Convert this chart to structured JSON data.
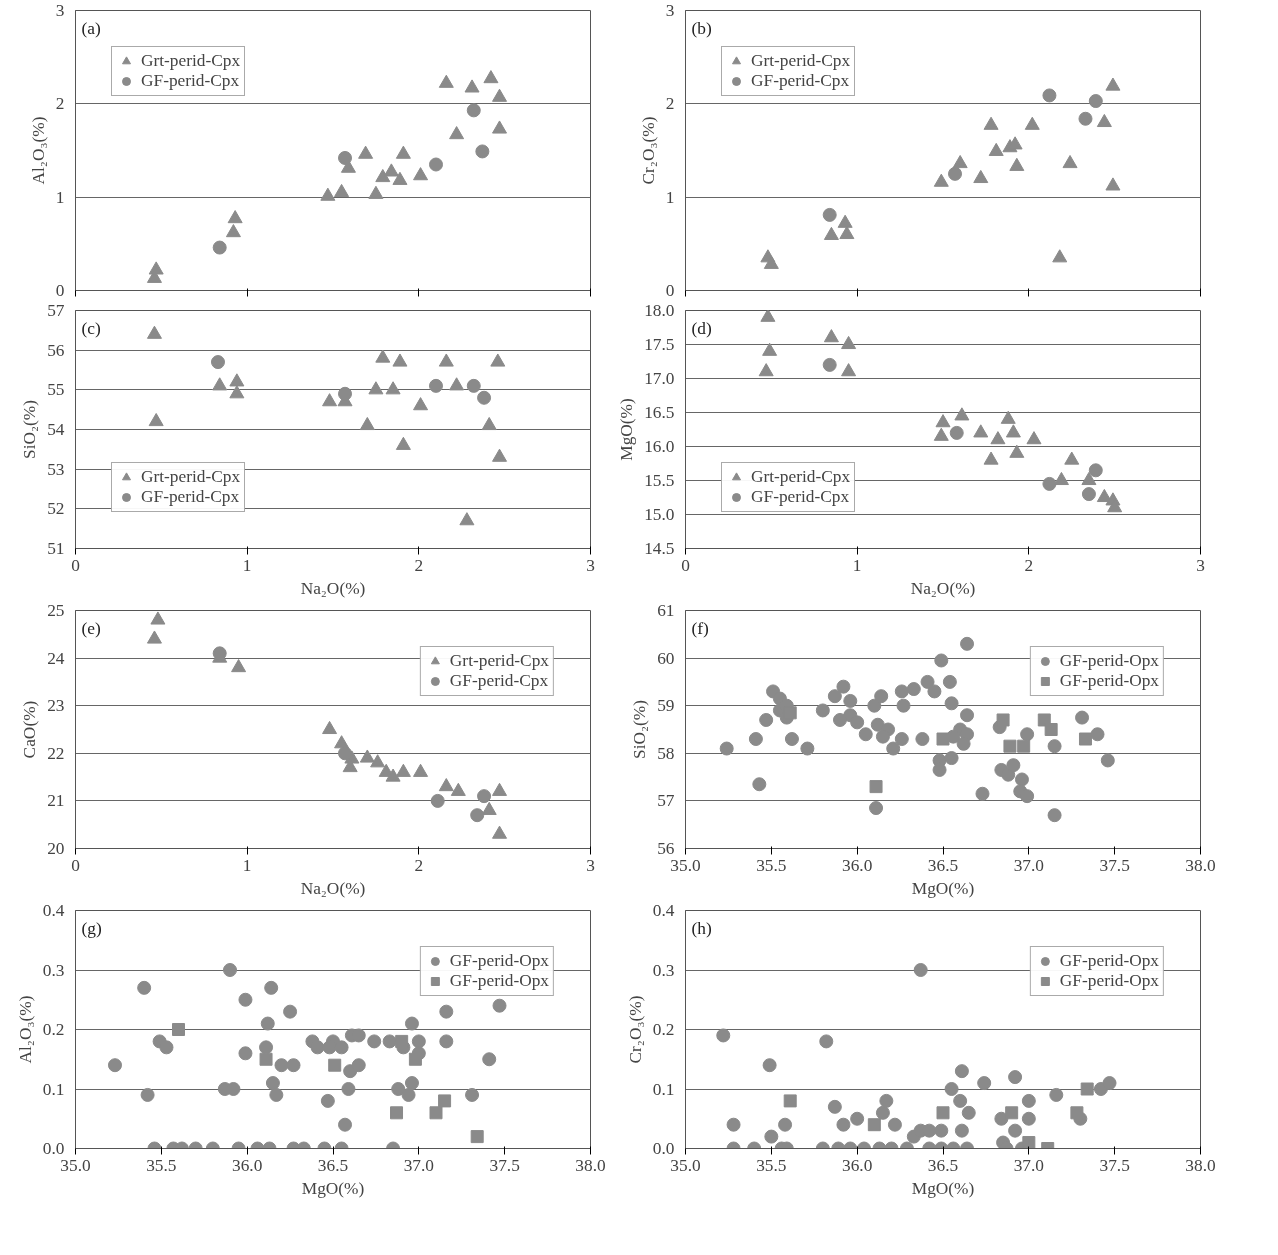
{
  "chart_data": [
    {
      "type": "scatter",
      "annotations": [
        "(a)"
      ],
      "ylabel": "Al₂O₃(%)",
      "xlim": [
        0,
        3
      ],
      "ylim": [
        0,
        3
      ],
      "xticks": [
        0,
        1,
        2,
        3
      ],
      "yticks": [
        0,
        1,
        2,
        3
      ],
      "grid": "y",
      "legend": "top left",
      "tick_labels": "y",
      "series": [
        {
          "name": "Grt-perid-Cpx",
          "color": "#8a8a8a",
          "marker": "triangle",
          "x": [
            0.47,
            0.46,
            0.93,
            0.92,
            1.47,
            1.55,
            1.59,
            1.69,
            1.75,
            1.79,
            1.84,
            1.89,
            1.91,
            2.01,
            2.16,
            2.22,
            2.31,
            2.42,
            2.47,
            2.47
          ],
          "values": [
            0.22,
            0.13,
            0.77,
            0.62,
            1.01,
            1.05,
            1.31,
            1.46,
            1.03,
            1.21,
            1.27,
            1.18,
            1.46,
            1.23,
            2.22,
            1.67,
            2.17,
            2.27,
            2.07,
            1.73
          ]
        },
        {
          "name": "GF-perid-Cpx",
          "color": "#8a8a8a",
          "marker": "circle",
          "x": [
            0.84,
            1.57,
            2.1,
            2.32,
            2.37
          ],
          "values": [
            0.46,
            1.42,
            1.35,
            1.93,
            1.49
          ]
        }
      ]
    },
    {
      "type": "scatter",
      "annotations": [
        "(b)"
      ],
      "ylabel": "Cr₂O₃(%)",
      "xlim": [
        0,
        3
      ],
      "ylim": [
        0,
        3
      ],
      "xticks": [
        0,
        1,
        2,
        3
      ],
      "yticks": [
        0,
        1,
        2,
        3
      ],
      "grid": "y",
      "legend": "top left",
      "tick_labels": "y",
      "series": [
        {
          "name": "Grt-perid-Cpx",
          "color": "#8a8a8a",
          "marker": "triangle",
          "x": [
            0.48,
            0.5,
            0.85,
            0.93,
            0.94,
            1.49,
            1.6,
            1.72,
            1.78,
            1.81,
            1.89,
            1.92,
            1.93,
            2.02,
            2.18,
            2.24,
            2.44,
            2.49,
            2.49
          ],
          "values": [
            0.35,
            0.28,
            0.59,
            0.72,
            0.6,
            1.16,
            1.36,
            1.2,
            1.77,
            1.49,
            1.53,
            1.56,
            1.33,
            1.77,
            0.35,
            1.36,
            1.8,
            2.19,
            1.12
          ]
        },
        {
          "name": "GF-perid-Cpx",
          "color": "#8a8a8a",
          "marker": "circle",
          "x": [
            0.84,
            1.57,
            2.12,
            2.33,
            2.39
          ],
          "values": [
            0.81,
            1.25,
            2.09,
            1.84,
            2.03
          ]
        }
      ]
    },
    {
      "type": "scatter",
      "annotations": [
        "(c)"
      ],
      "ylabel": "SiO₂(%)",
      "xlabel": "Na₂O(%)",
      "xlim": [
        0,
        3
      ],
      "ylim": [
        51,
        57
      ],
      "xticks": [
        0,
        1,
        2,
        3
      ],
      "yticks": [
        51,
        52,
        53,
        54,
        55,
        56,
        57
      ],
      "grid": "y",
      "legend": "bottom left",
      "series": [
        {
          "name": "Grt-perid-Cpx",
          "color": "#8a8a8a",
          "marker": "triangle",
          "x": [
            0.46,
            0.47,
            0.84,
            0.94,
            0.94,
            1.48,
            1.57,
            1.7,
            1.75,
            1.79,
            1.85,
            1.89,
            1.91,
            2.01,
            2.16,
            2.22,
            2.28,
            2.41,
            2.46,
            2.47
          ],
          "values": [
            56.4,
            54.2,
            55.1,
            55.2,
            54.9,
            54.7,
            54.7,
            54.1,
            55.0,
            55.8,
            55.0,
            55.7,
            53.6,
            54.6,
            55.7,
            55.1,
            51.7,
            54.1,
            55.7,
            53.3
          ]
        },
        {
          "name": "GF-perid-Cpx",
          "color": "#8a8a8a",
          "marker": "circle",
          "x": [
            0.83,
            1.57,
            2.1,
            2.32,
            2.38
          ],
          "values": [
            55.7,
            54.9,
            55.1,
            55.1,
            54.8
          ]
        }
      ]
    },
    {
      "type": "scatter",
      "annotations": [
        "(d)"
      ],
      "ylabel": "MgO(%)",
      "xlabel": "Na₂O(%)",
      "xlim": [
        0,
        3
      ],
      "ylim": [
        14.5,
        18
      ],
      "xticks": [
        0,
        1,
        2,
        3
      ],
      "yticks": [
        {
          "value": 14.5,
          "label": "14.5"
        },
        {
          "value": 15,
          "label": "15.0"
        },
        {
          "value": 15.5,
          "label": "15.5"
        },
        {
          "value": 16,
          "label": "16.0"
        },
        {
          "value": 16.5,
          "label": "16.5"
        },
        {
          "value": 17,
          "label": "17.0"
        },
        {
          "value": 17.5,
          "label": "17.5"
        },
        {
          "value": 18,
          "label": "18.0"
        }
      ],
      "grid": "y",
      "legend": "bottom left",
      "series": [
        {
          "name": "Grt-perid-Cpx",
          "color": "#8a8a8a",
          "marker": "triangle",
          "x": [
            0.48,
            0.49,
            0.47,
            0.85,
            0.95,
            0.95,
            1.5,
            1.49,
            1.61,
            1.72,
            1.78,
            1.82,
            1.88,
            1.91,
            1.93,
            2.03,
            2.19,
            2.25,
            2.35,
            2.44,
            2.49,
            2.5
          ],
          "values": [
            17.9,
            17.4,
            17.1,
            17.6,
            17.5,
            17.1,
            16.35,
            16.15,
            16.45,
            16.2,
            15.8,
            16.1,
            16.4,
            16.2,
            15.9,
            16.1,
            15.5,
            15.8,
            15.5,
            15.25,
            15.2,
            15.1
          ]
        },
        {
          "name": "GF-perid-Cpx",
          "color": "#8a8a8a",
          "marker": "circle",
          "x": [
            0.84,
            1.58,
            2.12,
            2.35,
            2.39
          ],
          "values": [
            17.2,
            16.2,
            15.45,
            15.3,
            15.65
          ]
        }
      ]
    },
    {
      "type": "scatter",
      "annotations": [
        "(e)"
      ],
      "ylabel": "CaO(%)",
      "xlabel": "Na₂O(%)",
      "xlim": [
        0,
        3
      ],
      "ylim": [
        20,
        25
      ],
      "xticks": [
        0,
        1,
        2,
        3
      ],
      "yticks": [
        20,
        21,
        22,
        23,
        24,
        25
      ],
      "grid": "y",
      "legend": "top right",
      "series": [
        {
          "name": "Grt-perid-Cpx",
          "color": "#8a8a8a",
          "marker": "triangle",
          "x": [
            0.48,
            0.46,
            0.84,
            0.95,
            1.48,
            1.55,
            1.61,
            1.6,
            1.7,
            1.76,
            1.81,
            1.85,
            1.91,
            2.01,
            2.16,
            2.23,
            2.41,
            2.47,
            2.47
          ],
          "values": [
            24.8,
            24.4,
            24.0,
            23.8,
            22.5,
            22.2,
            21.88,
            21.7,
            21.9,
            21.8,
            21.6,
            21.5,
            21.6,
            21.6,
            21.3,
            21.2,
            20.8,
            21.2,
            20.3
          ]
        },
        {
          "name": "GF-perid-Cpx",
          "color": "#8a8a8a",
          "marker": "circle",
          "x": [
            0.84,
            1.57,
            2.11,
            2.34,
            2.38
          ],
          "values": [
            24.1,
            22.0,
            21.0,
            20.7,
            21.1
          ]
        }
      ]
    },
    {
      "type": "scatter",
      "annotations": [
        "(f)"
      ],
      "ylabel": "SiO₂(%)",
      "xlabel": "MgO(%)",
      "xlim": [
        35,
        38
      ],
      "ylim": [
        56,
        61
      ],
      "xticks": [
        {
          "value": 35,
          "label": "35.0"
        },
        {
          "value": 35.5,
          "label": "35.5"
        },
        {
          "value": 36,
          "label": "36.0"
        },
        {
          "value": 36.5,
          "label": "36.5"
        },
        {
          "value": 37,
          "label": "37.0"
        },
        {
          "value": 37.5,
          "label": "37.5"
        },
        {
          "value": 38,
          "label": "38.0"
        }
      ],
      "yticks": [
        56,
        57,
        58,
        59,
        60,
        61
      ],
      "grid": "y",
      "legend": "top right",
      "series": [
        {
          "name": "GF-perid-Opx",
          "color": "#8a8a8a",
          "marker": "circle",
          "x": [
            35.24,
            35.41,
            35.43,
            35.47,
            35.51,
            35.55,
            35.55,
            35.59,
            35.59,
            35.62,
            35.71,
            35.8,
            35.87,
            35.92,
            35.96,
            35.96,
            35.9,
            36.0,
            36.05,
            36.1,
            36.14,
            36.12,
            36.18,
            36.15,
            36.21,
            36.26,
            36.27,
            36.26,
            36.33,
            36.41,
            36.45,
            36.38,
            36.49,
            36.64,
            36.54,
            36.55,
            36.64,
            36.6,
            36.64,
            36.62,
            36.56,
            36.48,
            36.48,
            36.55,
            36.73,
            36.11,
            36.83,
            36.84,
            36.88,
            36.91,
            36.96,
            36.95,
            36.99,
            36.99,
            37.15,
            37.15,
            37.31,
            37.4,
            37.46
          ],
          "values": [
            58.1,
            58.3,
            57.35,
            58.7,
            59.3,
            59.15,
            58.9,
            59.0,
            58.75,
            58.3,
            58.1,
            58.9,
            59.2,
            59.4,
            59.1,
            58.8,
            58.7,
            58.65,
            58.4,
            59.0,
            59.2,
            58.6,
            58.5,
            58.35,
            58.1,
            58.3,
            59.0,
            59.3,
            59.35,
            59.5,
            59.3,
            58.3,
            59.95,
            60.3,
            59.5,
            59.05,
            58.8,
            58.5,
            58.4,
            58.2,
            58.35,
            57.85,
            57.65,
            57.9,
            57.15,
            56.85,
            58.55,
            57.65,
            57.55,
            57.75,
            57.45,
            57.2,
            57.1,
            58.4,
            58.15,
            56.7,
            58.75,
            58.4,
            57.85
          ]
        },
        {
          "name": "GF-perid-Opx",
          "color": "#8a8a8a",
          "marker": "square",
          "x": [
            35.61,
            36.11,
            36.5,
            36.85,
            36.89,
            36.97,
            37.09,
            37.13,
            37.33
          ],
          "values": [
            58.85,
            57.3,
            58.3,
            58.7,
            58.15,
            58.15,
            58.7,
            58.5,
            58.3
          ]
        }
      ]
    },
    {
      "type": "scatter",
      "annotations": [
        "(g)"
      ],
      "ylabel": "Al₂O₃(%)",
      "xlabel": "MgO(%)",
      "xlim": [
        35,
        38
      ],
      "ylim": [
        0,
        0.4
      ],
      "xticks": [
        {
          "value": 35,
          "label": "35.0"
        },
        {
          "value": 35.5,
          "label": "35.5"
        },
        {
          "value": 36,
          "label": "36.0"
        },
        {
          "value": 36.5,
          "label": "36.5"
        },
        {
          "value": 37,
          "label": "37.0"
        },
        {
          "value": 37.5,
          "label": "37.5"
        },
        {
          "value": 38,
          "label": "38.0"
        }
      ],
      "yticks": [
        {
          "value": 0,
          "label": "0.0"
        },
        {
          "value": 0.1,
          "label": "0.1"
        },
        {
          "value": 0.2,
          "label": "0.2"
        },
        {
          "value": 0.3,
          "label": "0.3"
        },
        {
          "value": 0.4,
          "label": "0.4"
        }
      ],
      "grid": "y",
      "legend": "top right",
      "series": [
        {
          "name": "GF-perid-Opx",
          "color": "#8a8a8a",
          "marker": "circle",
          "x": [
            35.23,
            35.4,
            35.42,
            35.49,
            35.53,
            35.9,
            35.87,
            35.92,
            35.99,
            35.99,
            36.12,
            36.11,
            36.14,
            36.15,
            36.17,
            36.2,
            36.27,
            36.25,
            36.38,
            36.41,
            36.5,
            36.48,
            36.55,
            36.61,
            36.65,
            36.6,
            36.65,
            36.59,
            36.47,
            36.57,
            36.74,
            36.83,
            36.91,
            36.96,
            37.0,
            37.0,
            36.88,
            36.94,
            36.96,
            37.16,
            37.16,
            37.31,
            37.41,
            37.47,
            35.46,
            35.57,
            35.62,
            35.7,
            35.8,
            35.95,
            36.06,
            36.13,
            36.27,
            36.33,
            36.45,
            36.55,
            36.85
          ],
          "values": [
            0.14,
            0.27,
            0.09,
            0.18,
            0.17,
            0.3,
            0.1,
            0.1,
            0.25,
            0.16,
            0.21,
            0.17,
            0.27,
            0.11,
            0.09,
            0.14,
            0.14,
            0.23,
            0.18,
            0.17,
            0.18,
            0.17,
            0.17,
            0.19,
            0.19,
            0.13,
            0.14,
            0.1,
            0.08,
            0.04,
            0.18,
            0.18,
            0.17,
            0.21,
            0.18,
            0.16,
            0.1,
            0.09,
            0.11,
            0.23,
            0.18,
            0.09,
            0.15,
            0.24,
            0,
            0,
            0,
            0,
            0,
            0,
            0,
            0,
            0,
            0,
            0,
            0,
            0
          ]
        },
        {
          "name": "GF-perid-Opx",
          "color": "#8a8a8a",
          "marker": "square",
          "x": [
            35.6,
            36.11,
            36.51,
            36.9,
            36.98,
            36.87,
            37.1,
            37.15,
            37.34
          ],
          "values": [
            0.2,
            0.15,
            0.14,
            0.18,
            0.15,
            0.06,
            0.06,
            0.08,
            0.02
          ]
        }
      ]
    },
    {
      "type": "scatter",
      "annotations": [
        "(h)"
      ],
      "ylabel": "Cr₂O₃(%)",
      "xlabel": "MgO(%)",
      "xlim": [
        35,
        38
      ],
      "ylim": [
        0,
        0.4
      ],
      "xticks": [
        {
          "value": 35,
          "label": "35.0"
        },
        {
          "value": 35.5,
          "label": "35.5"
        },
        {
          "value": 36,
          "label": "36.0"
        },
        {
          "value": 36.5,
          "label": "36.5"
        },
        {
          "value": 37,
          "label": "37.0"
        },
        {
          "value": 37.5,
          "label": "37.5"
        },
        {
          "value": 38,
          "label": "38.0"
        }
      ],
      "yticks": [
        {
          "value": 0,
          "label": "0.0"
        },
        {
          "value": 0.1,
          "label": "0.1"
        },
        {
          "value": 0.2,
          "label": "0.2"
        },
        {
          "value": 0.3,
          "label": "0.3"
        },
        {
          "value": 0.4,
          "label": "0.4"
        }
      ],
      "grid": "y",
      "legend": "top right",
      "series": [
        {
          "name": "GF-perid-Opx",
          "color": "#8a8a8a",
          "marker": "circle",
          "x": [
            35.22,
            35.49,
            35.82,
            36.37,
            35.28,
            35.5,
            35.58,
            35.87,
            35.92,
            36.0,
            36.15,
            36.17,
            36.22,
            36.33,
            36.37,
            36.42,
            36.49,
            36.55,
            36.61,
            36.6,
            36.61,
            36.65,
            36.74,
            36.84,
            36.85,
            36.92,
            36.92,
            37.0,
            37.0,
            37.16,
            37.3,
            37.42,
            37.47,
            35.28,
            35.4,
            35.56,
            35.59,
            35.8,
            35.89,
            35.96,
            36.04,
            36.13,
            36.2,
            36.29,
            36.42,
            36.49,
            36.56,
            36.64,
            36.87,
            36.96
          ],
          "values": [
            0.19,
            0.14,
            0.18,
            0.3,
            0.04,
            0.02,
            0.04,
            0.07,
            0.04,
            0.05,
            0.06,
            0.08,
            0.04,
            0.02,
            0.03,
            0.03,
            0.03,
            0.1,
            0.13,
            0.08,
            0.03,
            0.06,
            0.11,
            0.05,
            0.01,
            0.12,
            0.03,
            0.08,
            0.05,
            0.09,
            0.05,
            0.1,
            0.11,
            0,
            0,
            0,
            0,
            0,
            0,
            0,
            0,
            0,
            0,
            0,
            0,
            0,
            0,
            0,
            0,
            0
          ]
        },
        {
          "name": "GF-perid-Opx",
          "color": "#8a8a8a",
          "marker": "square",
          "x": [
            35.61,
            36.1,
            36.5,
            36.9,
            37.0,
            37.11,
            37.28,
            37.34
          ],
          "values": [
            0.08,
            0.04,
            0.06,
            0.06,
            0.01,
            0,
            0.06,
            0.1
          ]
        }
      ]
    }
  ]
}
